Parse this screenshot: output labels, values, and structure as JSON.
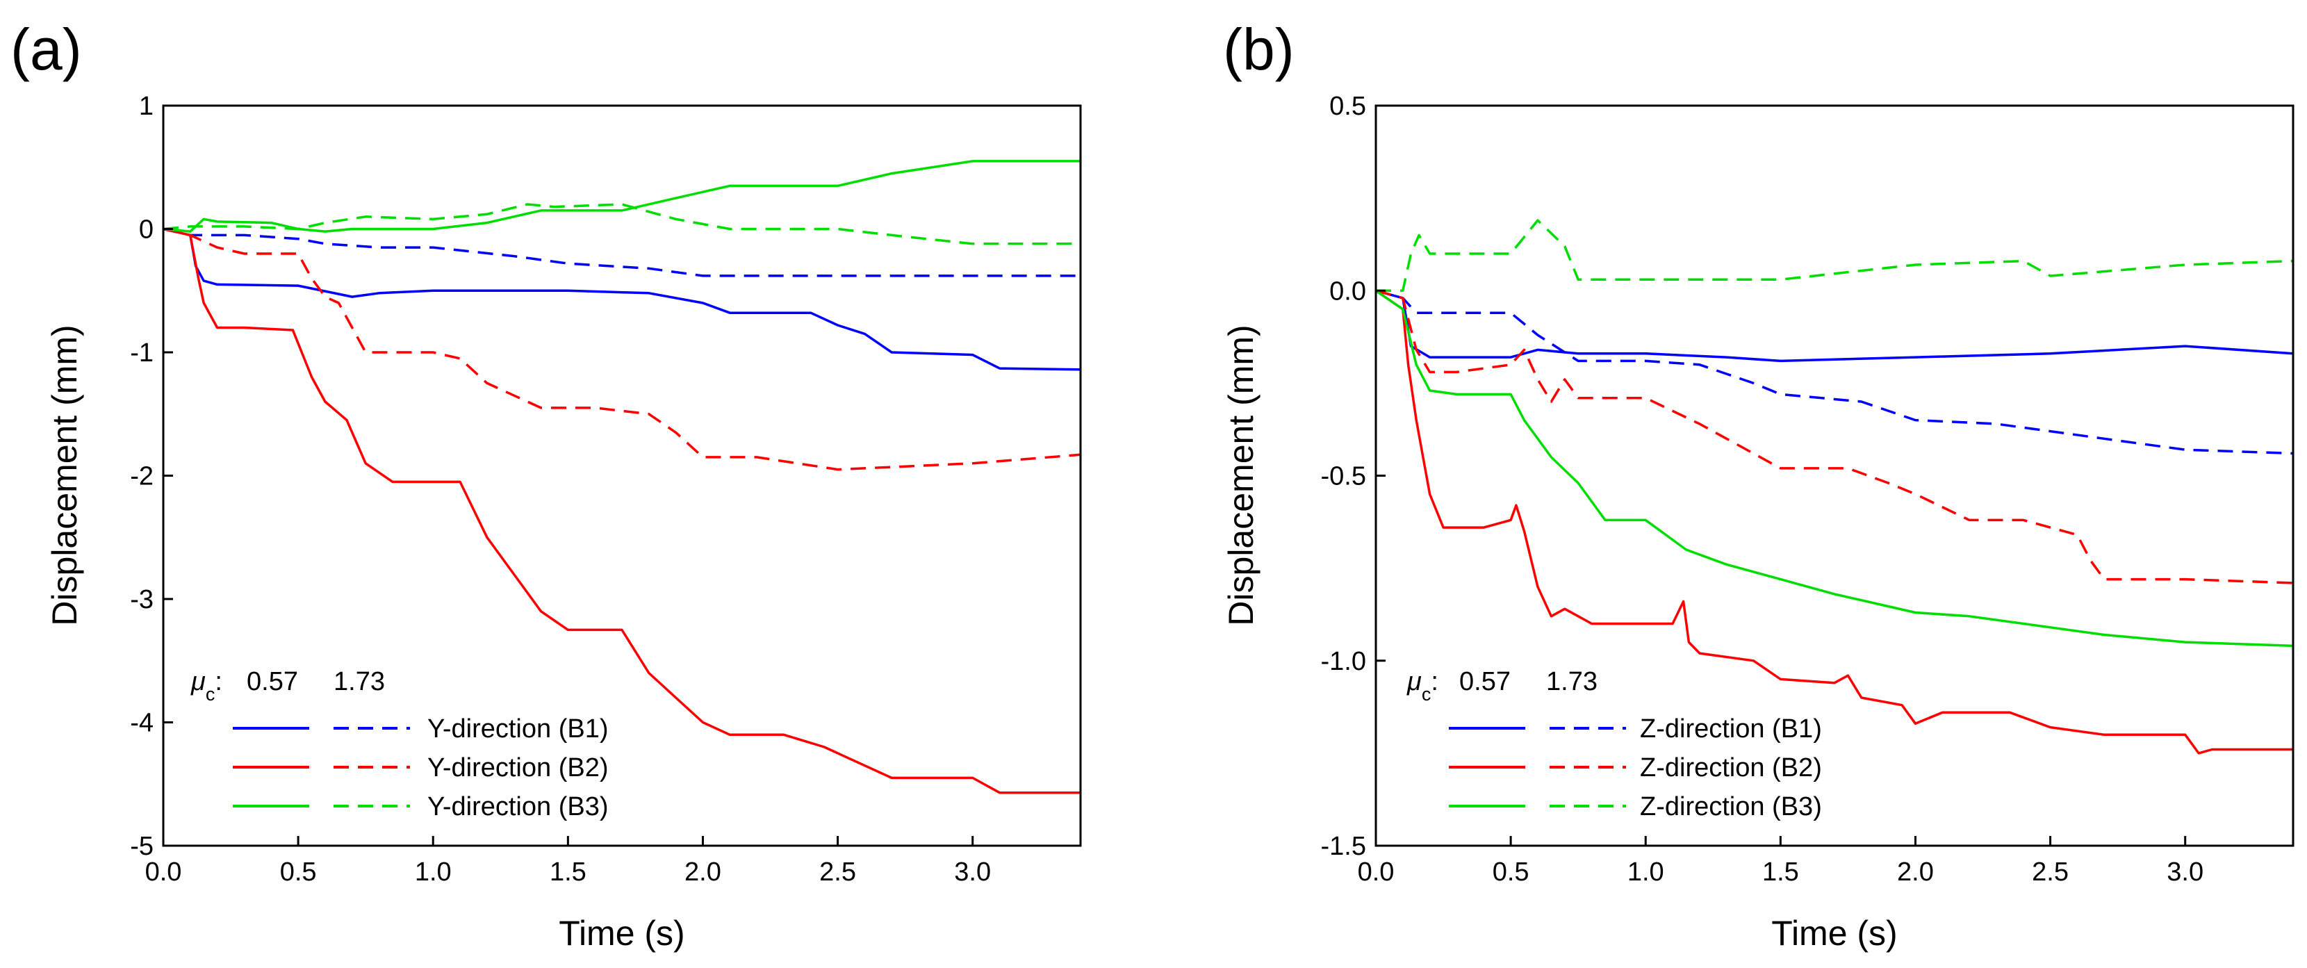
{
  "chart_data": [
    {
      "type": "line",
      "panel_label": "(a)",
      "xlabel": "Time (s)",
      "ylabel": "Displacement (mm)",
      "xlim": [
        0,
        3.4
      ],
      "ylim": [
        -5,
        1
      ],
      "xticks": [
        "0.0",
        "0.5",
        "1.0",
        "1.5",
        "2.0",
        "2.5",
        "3.0"
      ],
      "xtick_values": [
        0,
        0.5,
        1,
        1.5,
        2,
        2.5,
        3
      ],
      "yticks": [
        "1",
        "0",
        "-1",
        "-2",
        "-3",
        "-4",
        "-5"
      ],
      "ytick_values": [
        1,
        0,
        -1,
        -2,
        -3,
        -4,
        -5
      ],
      "legend": {
        "mu_symbol": "μ",
        "mu_subscript": "c",
        "mu_colon": ":",
        "col1": "0.57",
        "col2": "1.73",
        "entries": [
          {
            "label": "Y-direction (B1)",
            "color": "#0000ff"
          },
          {
            "label": "Y-direction (B2)",
            "color": "#ff0000"
          },
          {
            "label": "Y-direction (B3)",
            "color": "#00dd00"
          }
        ]
      },
      "series": [
        {
          "color": "#0000ff",
          "dash": false,
          "x": [
            0,
            0.1,
            0.12,
            0.15,
            0.2,
            0.5,
            0.7,
            0.8,
            1.0,
            1.3,
            1.5,
            1.8,
            2.0,
            2.1,
            2.4,
            2.5,
            2.6,
            2.7,
            3.0,
            3.1,
            3.4
          ],
          "y": [
            0,
            -0.05,
            -0.3,
            -0.42,
            -0.45,
            -0.46,
            -0.55,
            -0.52,
            -0.5,
            -0.5,
            -0.5,
            -0.52,
            -0.6,
            -0.68,
            -0.68,
            -0.78,
            -0.85,
            -1.0,
            -1.02,
            -1.13,
            -1.14
          ]
        },
        {
          "color": "#0000ff",
          "dash": true,
          "x": [
            0,
            0.1,
            0.3,
            0.5,
            0.6,
            0.8,
            1.0,
            1.3,
            1.5,
            1.8,
            2.0,
            2.5,
            3.0,
            3.4
          ],
          "y": [
            0,
            -0.05,
            -0.05,
            -0.08,
            -0.12,
            -0.15,
            -0.15,
            -0.22,
            -0.28,
            -0.32,
            -0.38,
            -0.38,
            -0.38,
            -0.38
          ]
        },
        {
          "color": "#ff0000",
          "dash": false,
          "x": [
            0,
            0.1,
            0.13,
            0.15,
            0.2,
            0.3,
            0.48,
            0.55,
            0.6,
            0.68,
            0.75,
            0.85,
            1.0,
            1.1,
            1.2,
            1.3,
            1.4,
            1.5,
            1.7,
            1.8,
            1.9,
            2.0,
            2.1,
            2.3,
            2.45,
            2.55,
            2.7,
            2.9,
            3.0,
            3.1,
            3.4
          ],
          "y": [
            0,
            -0.05,
            -0.4,
            -0.6,
            -0.8,
            -0.8,
            -0.82,
            -1.2,
            -1.4,
            -1.55,
            -1.9,
            -2.05,
            -2.05,
            -2.05,
            -2.5,
            -2.8,
            -3.1,
            -3.25,
            -3.25,
            -3.6,
            -3.8,
            -4.0,
            -4.1,
            -4.1,
            -4.2,
            -4.3,
            -4.45,
            -4.45,
            -4.45,
            -4.57,
            -4.57
          ]
        },
        {
          "color": "#ff0000",
          "dash": true,
          "x": [
            0,
            0.1,
            0.2,
            0.3,
            0.5,
            0.55,
            0.6,
            0.65,
            0.75,
            1.0,
            1.1,
            1.2,
            1.4,
            1.6,
            1.8,
            1.9,
            2.0,
            2.2,
            2.5,
            2.7,
            3.0,
            3.4
          ],
          "y": [
            0,
            -0.05,
            -0.15,
            -0.2,
            -0.2,
            -0.4,
            -0.55,
            -0.6,
            -1.0,
            -1.0,
            -1.05,
            -1.25,
            -1.45,
            -1.45,
            -1.5,
            -1.65,
            -1.85,
            -1.85,
            -1.95,
            -1.93,
            -1.9,
            -1.83
          ]
        },
        {
          "color": "#00dd00",
          "dash": false,
          "x": [
            0,
            0.1,
            0.15,
            0.2,
            0.4,
            0.5,
            0.6,
            0.7,
            1.0,
            1.2,
            1.4,
            1.7,
            1.9,
            2.1,
            2.5,
            2.7,
            3.0,
            3.4
          ],
          "y": [
            0,
            -0.02,
            0.08,
            0.06,
            0.05,
            0.0,
            -0.02,
            0.0,
            0.0,
            0.05,
            0.15,
            0.15,
            0.25,
            0.35,
            0.35,
            0.45,
            0.55,
            0.55
          ]
        },
        {
          "color": "#00dd00",
          "dash": true,
          "x": [
            0,
            0.1,
            0.3,
            0.5,
            0.6,
            0.75,
            1.0,
            1.2,
            1.35,
            1.45,
            1.7,
            1.9,
            2.1,
            2.5,
            2.7,
            3.0,
            3.4
          ],
          "y": [
            0,
            0.02,
            0.02,
            0.0,
            0.05,
            0.1,
            0.08,
            0.12,
            0.2,
            0.18,
            0.2,
            0.08,
            0.0,
            0.0,
            -0.05,
            -0.12,
            -0.12
          ]
        }
      ]
    },
    {
      "type": "line",
      "panel_label": "(b)",
      "xlabel": "Time (s)",
      "ylabel": "Displacement (mm)",
      "xlim": [
        0,
        3.4
      ],
      "ylim": [
        -1.5,
        0.5
      ],
      "xticks": [
        "0.0",
        "0.5",
        "1.0",
        "1.5",
        "2.0",
        "2.5",
        "3.0"
      ],
      "xtick_values": [
        0,
        0.5,
        1,
        1.5,
        2,
        2.5,
        3
      ],
      "yticks": [
        "0.5",
        "0.0",
        "-0.5",
        "-1.0",
        "-1.5"
      ],
      "ytick_values": [
        0.5,
        0,
        -0.5,
        -1,
        -1.5
      ],
      "legend": {
        "mu_symbol": "μ",
        "mu_subscript": "c",
        "mu_colon": ":",
        "col1": "0.57",
        "col2": "1.73",
        "entries": [
          {
            "label": "Z-direction (B1)",
            "color": "#0000ff"
          },
          {
            "label": "Z-direction (B2)",
            "color": "#ff0000"
          },
          {
            "label": "Z-direction (B3)",
            "color": "#00dd00"
          }
        ]
      },
      "series": [
        {
          "color": "#0000ff",
          "dash": false,
          "x": [
            0,
            0.1,
            0.13,
            0.2,
            0.5,
            0.6,
            0.75,
            1.0,
            1.3,
            1.5,
            2.0,
            2.5,
            3.0,
            3.4
          ],
          "y": [
            0,
            -0.02,
            -0.15,
            -0.18,
            -0.18,
            -0.16,
            -0.17,
            -0.17,
            -0.18,
            -0.19,
            -0.18,
            -0.17,
            -0.15,
            -0.17
          ]
        },
        {
          "color": "#0000ff",
          "dash": true,
          "x": [
            0,
            0.1,
            0.15,
            0.3,
            0.5,
            0.6,
            0.75,
            1.0,
            1.2,
            1.4,
            1.5,
            1.8,
            2.0,
            2.3,
            2.5,
            2.7,
            3.0,
            3.4
          ],
          "y": [
            0,
            -0.02,
            -0.06,
            -0.06,
            -0.06,
            -0.12,
            -0.19,
            -0.19,
            -0.2,
            -0.25,
            -0.28,
            -0.3,
            -0.35,
            -0.36,
            -0.38,
            -0.4,
            -0.43,
            -0.44
          ]
        },
        {
          "color": "#ff0000",
          "dash": false,
          "x": [
            0,
            0.1,
            0.12,
            0.15,
            0.2,
            0.25,
            0.4,
            0.5,
            0.52,
            0.55,
            0.6,
            0.65,
            0.7,
            0.75,
            0.8,
            1.1,
            1.14,
            1.16,
            1.2,
            1.4,
            1.5,
            1.7,
            1.75,
            1.8,
            1.95,
            2.0,
            2.1,
            2.35,
            2.5,
            2.7,
            3.0,
            3.05,
            3.1,
            3.4
          ],
          "y": [
            0,
            -0.05,
            -0.2,
            -0.35,
            -0.55,
            -0.64,
            -0.64,
            -0.62,
            -0.58,
            -0.65,
            -0.8,
            -0.88,
            -0.86,
            -0.88,
            -0.9,
            -0.9,
            -0.84,
            -0.95,
            -0.98,
            -1.0,
            -1.05,
            -1.06,
            -1.04,
            -1.1,
            -1.12,
            -1.17,
            -1.14,
            -1.14,
            -1.18,
            -1.2,
            -1.2,
            -1.25,
            -1.24,
            -1.24
          ]
        },
        {
          "color": "#ff0000",
          "dash": true,
          "x": [
            0,
            0.1,
            0.15,
            0.2,
            0.3,
            0.5,
            0.55,
            0.6,
            0.65,
            0.7,
            0.75,
            1.0,
            1.2,
            1.3,
            1.5,
            1.75,
            1.9,
            2.0,
            2.2,
            2.4,
            2.6,
            2.65,
            2.7,
            3.0,
            3.4
          ],
          "y": [
            0,
            -0.02,
            -0.16,
            -0.22,
            -0.22,
            -0.2,
            -0.16,
            -0.24,
            -0.3,
            -0.24,
            -0.29,
            -0.29,
            -0.36,
            -0.4,
            -0.48,
            -0.48,
            -0.52,
            -0.55,
            -0.62,
            -0.62,
            -0.66,
            -0.73,
            -0.78,
            -0.78,
            -0.79
          ]
        },
        {
          "color": "#00dd00",
          "dash": false,
          "x": [
            0,
            0.1,
            0.15,
            0.2,
            0.3,
            0.5,
            0.55,
            0.65,
            0.75,
            0.85,
            1.0,
            1.15,
            1.3,
            1.5,
            1.7,
            2.0,
            2.2,
            2.5,
            2.7,
            3.0,
            3.4
          ],
          "y": [
            0,
            -0.05,
            -0.2,
            -0.27,
            -0.28,
            -0.28,
            -0.35,
            -0.45,
            -0.52,
            -0.62,
            -0.62,
            -0.7,
            -0.74,
            -0.78,
            -0.82,
            -0.87,
            -0.88,
            -0.91,
            -0.93,
            -0.95,
            -0.96
          ]
        },
        {
          "color": "#00dd00",
          "dash": true,
          "x": [
            0,
            0.1,
            0.13,
            0.16,
            0.2,
            0.5,
            0.6,
            0.7,
            0.75,
            1.0,
            1.5,
            2.0,
            2.4,
            2.5,
            3.0,
            3.4
          ],
          "y": [
            0,
            0.0,
            0.1,
            0.15,
            0.1,
            0.1,
            0.19,
            0.12,
            0.03,
            0.03,
            0.03,
            0.07,
            0.08,
            0.04,
            0.07,
            0.08
          ]
        }
      ]
    }
  ]
}
